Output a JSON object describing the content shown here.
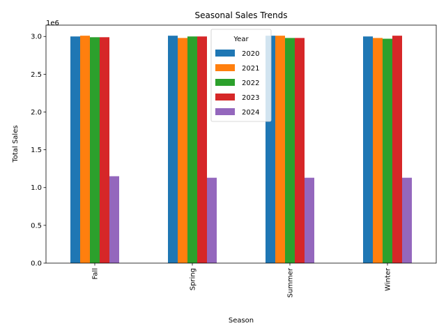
{
  "chart_data": {
    "type": "bar",
    "title": "Seasonal Sales Trends",
    "xlabel": "Season",
    "ylabel": "Total Sales",
    "offset_text": "1e6",
    "categories": [
      "Fall",
      "Spring",
      "Summer",
      "Winter"
    ],
    "ylim": [
      0,
      3150000
    ],
    "yticks": [
      0,
      500000,
      1000000,
      1500000,
      2000000,
      2500000,
      3000000
    ],
    "ytick_labels": [
      "0.0",
      "0.5",
      "1.0",
      "1.5",
      "2.0",
      "2.5",
      "3.0"
    ],
    "grid": false,
    "legend": {
      "title": "Year",
      "placement": "upper-center"
    },
    "series": [
      {
        "name": "2020",
        "color": "#1f77b4",
        "values": [
          3000000,
          3010000,
          3010000,
          3000000
        ]
      },
      {
        "name": "2021",
        "color": "#ff7f0e",
        "values": [
          3010000,
          2980000,
          3010000,
          2980000
        ]
      },
      {
        "name": "2022",
        "color": "#2ca02c",
        "values": [
          2990000,
          3000000,
          2980000,
          2970000
        ]
      },
      {
        "name": "2023",
        "color": "#d62728",
        "values": [
          2990000,
          3000000,
          2980000,
          3010000
        ]
      },
      {
        "name": "2024",
        "color": "#9467bd",
        "values": [
          1150000,
          1130000,
          1130000,
          1130000
        ]
      }
    ]
  }
}
